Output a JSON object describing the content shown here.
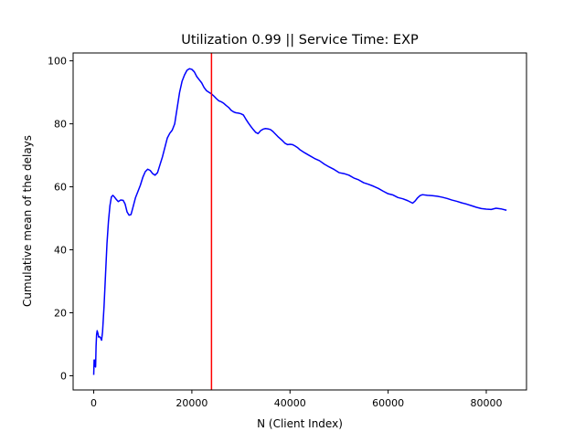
{
  "chart_data": {
    "type": "line",
    "title": "Utilization 0.99 || Service Time: EXP",
    "xlabel": "N (Client Index)",
    "ylabel": "Cumulative mean of the delays",
    "xlim": [
      -4200,
      88200
    ],
    "ylim": [
      -4.5,
      102.5
    ],
    "x_ticks": [
      0,
      20000,
      40000,
      60000,
      80000
    ],
    "x_tick_labels": [
      "0",
      "20000",
      "40000",
      "60000",
      "80000"
    ],
    "y_ticks": [
      0,
      20,
      40,
      60,
      80,
      100
    ],
    "y_tick_labels": [
      "0",
      "20",
      "40",
      "60",
      "80",
      "100"
    ],
    "grid": false,
    "legend": "none",
    "series": [
      {
        "color": "#0000ff",
        "points": [
          [
            0,
            0.5
          ],
          [
            80,
            5.0
          ],
          [
            180,
            3.0
          ],
          [
            280,
            5.0
          ],
          [
            380,
            2.8
          ],
          [
            480,
            9.5
          ],
          [
            580,
            13.0
          ],
          [
            700,
            14.3
          ],
          [
            850,
            13.5
          ],
          [
            1000,
            12.3
          ],
          [
            1200,
            12.4
          ],
          [
            1400,
            12.0
          ],
          [
            1600,
            11.3
          ],
          [
            1800,
            14.0
          ],
          [
            2100,
            22.0
          ],
          [
            2400,
            32.0
          ],
          [
            2700,
            42.0
          ],
          [
            3000,
            49.0
          ],
          [
            3300,
            54.0
          ],
          [
            3600,
            56.8
          ],
          [
            3900,
            57.3
          ],
          [
            4200,
            56.8
          ],
          [
            4600,
            56.0
          ],
          [
            5000,
            55.3
          ],
          [
            5500,
            55.8
          ],
          [
            6000,
            55.7
          ],
          [
            6400,
            54.5
          ],
          [
            6800,
            52.0
          ],
          [
            7200,
            51.0
          ],
          [
            7600,
            51.2
          ],
          [
            8000,
            53.5
          ],
          [
            8500,
            56.5
          ],
          [
            9000,
            58.5
          ],
          [
            9500,
            60.5
          ],
          [
            10000,
            63.0
          ],
          [
            10500,
            64.8
          ],
          [
            11000,
            65.6
          ],
          [
            11500,
            65.2
          ],
          [
            12000,
            64.2
          ],
          [
            12500,
            63.7
          ],
          [
            13000,
            64.5
          ],
          [
            13500,
            67.0
          ],
          [
            14000,
            69.5
          ],
          [
            14500,
            72.5
          ],
          [
            15000,
            75.5
          ],
          [
            15500,
            77.0
          ],
          [
            16000,
            78.0
          ],
          [
            16500,
            80.0
          ],
          [
            17000,
            85.0
          ],
          [
            17500,
            90.0
          ],
          [
            18000,
            93.5
          ],
          [
            18500,
            95.5
          ],
          [
            19000,
            97.0
          ],
          [
            19500,
            97.5
          ],
          [
            20000,
            97.3
          ],
          [
            20500,
            96.5
          ],
          [
            21000,
            95.0
          ],
          [
            21500,
            94.0
          ],
          [
            22000,
            93.0
          ],
          [
            22500,
            91.5
          ],
          [
            23000,
            90.5
          ],
          [
            23500,
            90.0
          ],
          [
            24000,
            89.5
          ],
          [
            24500,
            88.8
          ],
          [
            25000,
            88.0
          ],
          [
            25500,
            87.3
          ],
          [
            26000,
            87.0
          ],
          [
            26500,
            86.5
          ],
          [
            27000,
            85.8
          ],
          [
            27500,
            85.2
          ],
          [
            28000,
            84.3
          ],
          [
            28500,
            83.8
          ],
          [
            29000,
            83.5
          ],
          [
            29500,
            83.4
          ],
          [
            30000,
            83.2
          ],
          [
            30500,
            82.8
          ],
          [
            31000,
            81.5
          ],
          [
            31500,
            80.3
          ],
          [
            32000,
            79.2
          ],
          [
            32500,
            78.2
          ],
          [
            33000,
            77.3
          ],
          [
            33500,
            76.9
          ],
          [
            34000,
            77.8
          ],
          [
            34500,
            78.3
          ],
          [
            35000,
            78.5
          ],
          [
            35500,
            78.4
          ],
          [
            36000,
            78.2
          ],
          [
            36500,
            77.6
          ],
          [
            37000,
            76.8
          ],
          [
            37500,
            76.0
          ],
          [
            38000,
            75.3
          ],
          [
            38500,
            74.6
          ],
          [
            39000,
            73.8
          ],
          [
            39500,
            73.4
          ],
          [
            40000,
            73.5
          ],
          [
            40500,
            73.4
          ],
          [
            41000,
            73.0
          ],
          [
            41500,
            72.5
          ],
          [
            42000,
            71.8
          ],
          [
            43000,
            70.8
          ],
          [
            44000,
            69.9
          ],
          [
            45000,
            69.0
          ],
          [
            46000,
            68.3
          ],
          [
            47000,
            67.2
          ],
          [
            48000,
            66.3
          ],
          [
            49000,
            65.5
          ],
          [
            50000,
            64.5
          ],
          [
            51000,
            64.2
          ],
          [
            52000,
            63.7
          ],
          [
            53000,
            62.8
          ],
          [
            54000,
            62.2
          ],
          [
            55000,
            61.3
          ],
          [
            56000,
            60.8
          ],
          [
            57000,
            60.2
          ],
          [
            58000,
            59.5
          ],
          [
            59000,
            58.6
          ],
          [
            60000,
            57.8
          ],
          [
            61000,
            57.4
          ],
          [
            62000,
            56.6
          ],
          [
            63000,
            56.2
          ],
          [
            64000,
            55.6
          ],
          [
            65000,
            54.8
          ],
          [
            65500,
            55.5
          ],
          [
            66000,
            56.5
          ],
          [
            66500,
            57.2
          ],
          [
            67000,
            57.5
          ],
          [
            68000,
            57.3
          ],
          [
            69000,
            57.2
          ],
          [
            70000,
            57.0
          ],
          [
            71000,
            56.7
          ],
          [
            72000,
            56.3
          ],
          [
            73000,
            55.8
          ],
          [
            74000,
            55.4
          ],
          [
            75000,
            54.9
          ],
          [
            76000,
            54.5
          ],
          [
            77000,
            54.0
          ],
          [
            78000,
            53.5
          ],
          [
            79000,
            53.1
          ],
          [
            80000,
            52.9
          ],
          [
            81000,
            52.8
          ],
          [
            82000,
            53.2
          ],
          [
            83000,
            53.0
          ],
          [
            84000,
            52.6
          ]
        ]
      }
    ],
    "vertical_lines": [
      {
        "x": 24000,
        "color": "#ff0000"
      }
    ]
  }
}
